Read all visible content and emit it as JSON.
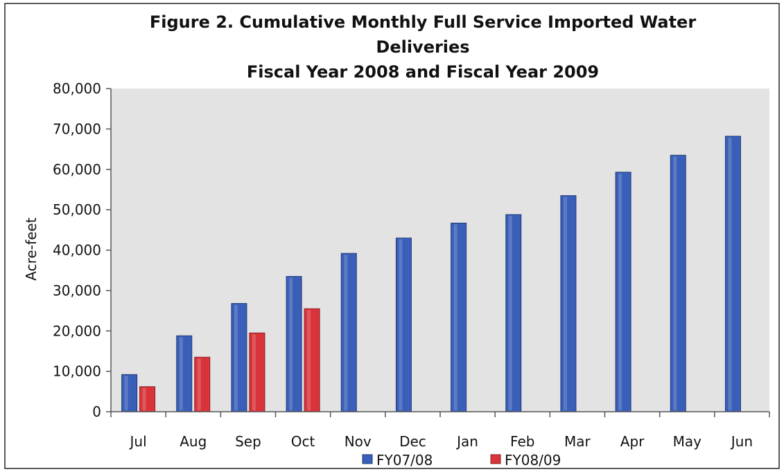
{
  "chart_data": {
    "type": "bar",
    "title_lines": [
      "Figure 2. Cumulative Monthly Full Service Imported Water",
      "Deliveries",
      "Fiscal Year 2008 and Fiscal Year 2009"
    ],
    "ylabel": "Acre-feet",
    "xlabel": "",
    "ylim": [
      0,
      80000
    ],
    "yticks": [
      0,
      10000,
      20000,
      30000,
      40000,
      50000,
      60000,
      70000,
      80000
    ],
    "ytick_labels": [
      "0",
      "10,000",
      "20,000",
      "30,000",
      "40,000",
      "50,000",
      "60,000",
      "70,000",
      "80,000"
    ],
    "categories": [
      "Jul",
      "Aug",
      "Sep",
      "Oct",
      "Nov",
      "Dec",
      "Jan",
      "Feb",
      "Mar",
      "Apr",
      "May",
      "Jun"
    ],
    "series": [
      {
        "name": "FY07/08",
        "color": "#3a5fb8",
        "values": [
          9200,
          18800,
          26800,
          33500,
          39200,
          43000,
          46700,
          48800,
          53500,
          59300,
          63500,
          68200
        ]
      },
      {
        "name": "FY08/09",
        "color": "#d8343a",
        "values": [
          6200,
          13500,
          19500,
          25500,
          null,
          null,
          null,
          null,
          null,
          null,
          null,
          null
        ]
      }
    ],
    "grid": false,
    "legend_position": "bottom",
    "plot_background": "#e3e3e3"
  }
}
